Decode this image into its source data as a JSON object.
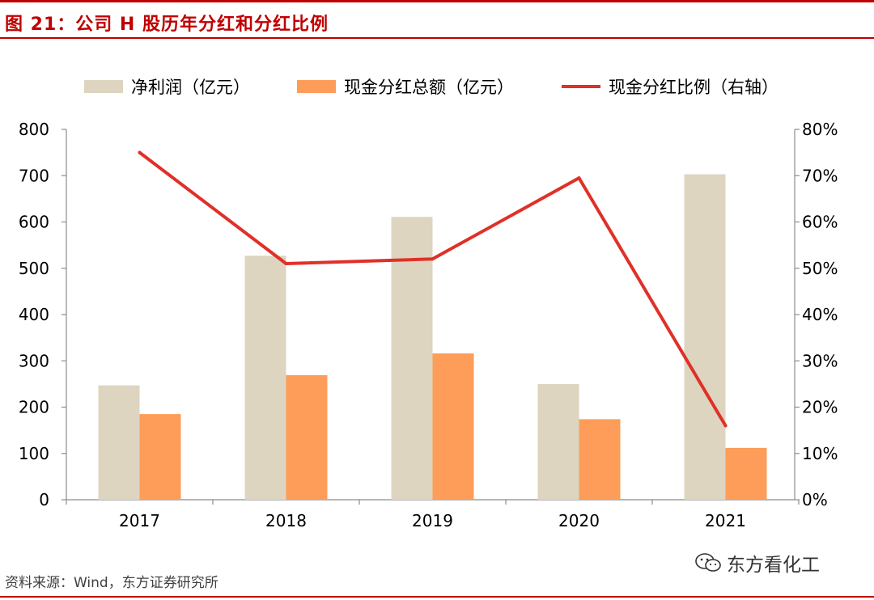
{
  "figure": {
    "title": "图 21：公司 H 股历年分红和分红比例",
    "source": "资料来源：Wind，东方证券研究所",
    "watermark": "东方看化工"
  },
  "colors": {
    "net_profit": "#ddd5c0",
    "cash_dividend": "#fd9d59",
    "payout_ratio": "#e03028",
    "accent": "#c00000",
    "axis": "#8c8c8c"
  },
  "chart_data": {
    "type": "bar",
    "categories": [
      "2017",
      "2018",
      "2019",
      "2020",
      "2021"
    ],
    "series": [
      {
        "name": "净利润（亿元）",
        "type": "bar",
        "axis": "left",
        "values": [
          247,
          527,
          611,
          250,
          703
        ]
      },
      {
        "name": "现金分红总额（亿元）",
        "type": "bar",
        "axis": "left",
        "values": [
          185,
          269,
          316,
          174,
          112
        ]
      },
      {
        "name": "现金分红比例（右轴）",
        "type": "line",
        "axis": "right",
        "values": [
          75,
          51,
          52,
          69.5,
          16
        ]
      }
    ],
    "ylim": [
      0,
      800
    ],
    "yticks": [
      "0",
      "100",
      "200",
      "300",
      "400",
      "500",
      "600",
      "700",
      "800"
    ],
    "y2lim": [
      0,
      80
    ],
    "y2ticks": [
      "0%",
      "10%",
      "20%",
      "30%",
      "40%",
      "50%",
      "60%",
      "70%",
      "80%"
    ],
    "legend_position": "top",
    "grid": false,
    "xlabel": "",
    "ylabel": "",
    "y2label": ""
  }
}
